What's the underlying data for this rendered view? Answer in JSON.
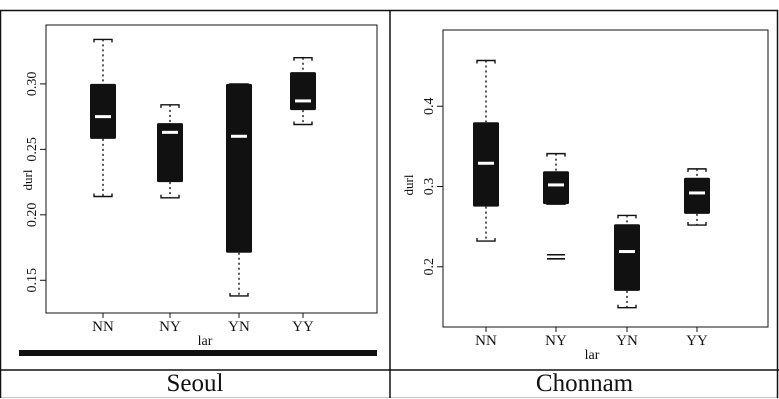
{
  "captions": {
    "left": "Seoul",
    "right": "Chonnam"
  },
  "chart_data": [
    {
      "type": "boxplot",
      "panel": "Seoul",
      "xlabel": "lar",
      "ylabel": "durl",
      "categories": [
        "NN",
        "NY",
        "YN",
        "YY"
      ],
      "yticks": [
        "0.15",
        "0.20",
        "0.25",
        "0.30"
      ],
      "ylim": [
        0.125,
        0.345
      ],
      "boxes": [
        {
          "category": "NN",
          "min": 0.214,
          "q1": 0.258,
          "median": 0.275,
          "q3": 0.3,
          "max": 0.334,
          "outliers": []
        },
        {
          "category": "NY",
          "min": 0.213,
          "q1": 0.225,
          "median": 0.263,
          "q3": 0.27,
          "max": 0.284,
          "outliers": []
        },
        {
          "category": "YN",
          "min": 0.138,
          "q1": 0.171,
          "median": 0.26,
          "q3": 0.3,
          "max": 0.3,
          "outliers": []
        },
        {
          "category": "YY",
          "min": 0.269,
          "q1": 0.28,
          "median": 0.287,
          "q3": 0.309,
          "max": 0.32,
          "outliers": []
        }
      ]
    },
    {
      "type": "boxplot",
      "panel": "Chonnam",
      "xlabel": "lar",
      "ylabel": "durl",
      "categories": [
        "NN",
        "NY",
        "YN",
        "YY"
      ],
      "yticks": [
        "0.2",
        "0.3",
        "0.4"
      ],
      "ylim": [
        0.125,
        0.495
      ],
      "boxes": [
        {
          "category": "NN",
          "min": 0.232,
          "q1": 0.275,
          "median": 0.329,
          "q3": 0.38,
          "max": 0.457,
          "outliers": []
        },
        {
          "category": "NY",
          "min": 0.278,
          "q1": 0.278,
          "median": 0.302,
          "q3": 0.319,
          "max": 0.341,
          "outliers": [
            0.21,
            0.215
          ]
        },
        {
          "category": "YN",
          "min": 0.149,
          "q1": 0.17,
          "median": 0.219,
          "q3": 0.253,
          "max": 0.264,
          "outliers": []
        },
        {
          "category": "YY",
          "min": 0.252,
          "q1": 0.266,
          "median": 0.292,
          "q3": 0.311,
          "max": 0.322,
          "outliers": []
        }
      ]
    }
  ]
}
